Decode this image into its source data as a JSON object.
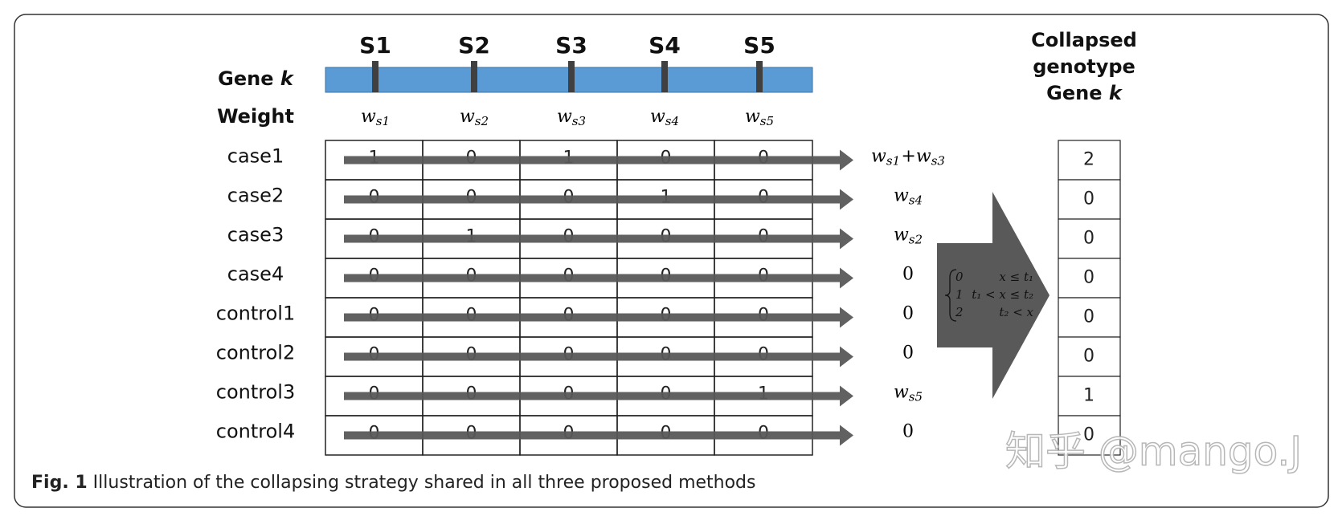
{
  "gene_label": {
    "text": "Gene",
    "var": "k"
  },
  "weight_label": "Weight",
  "sites": [
    "S1",
    "S2",
    "S3",
    "S4",
    "S5"
  ],
  "weights": [
    {
      "base": "w",
      "sub": "s1"
    },
    {
      "base": "w",
      "sub": "s2"
    },
    {
      "base": "w",
      "sub": "s3"
    },
    {
      "base": "w",
      "sub": "s4"
    },
    {
      "base": "w",
      "sub": "s5"
    }
  ],
  "rows": [
    {
      "label": "case1",
      "genotypes": [
        1,
        0,
        1,
        0,
        0
      ],
      "sum": [
        {
          "base": "w",
          "sub": "s1"
        },
        "+",
        {
          "base": "w",
          "sub": "s3"
        }
      ]
    },
    {
      "label": "case2",
      "genotypes": [
        0,
        0,
        0,
        1,
        0
      ],
      "sum": [
        {
          "base": "w",
          "sub": "s4"
        }
      ]
    },
    {
      "label": "case3",
      "genotypes": [
        0,
        1,
        0,
        0,
        0
      ],
      "sum": [
        {
          "base": "w",
          "sub": "s2"
        }
      ]
    },
    {
      "label": "case4",
      "genotypes": [
        0,
        0,
        0,
        0,
        0
      ],
      "sum": [
        0
      ]
    },
    {
      "label": "control1",
      "genotypes": [
        0,
        0,
        0,
        0,
        0
      ],
      "sum": [
        0
      ]
    },
    {
      "label": "control2",
      "genotypes": [
        0,
        0,
        0,
        0,
        0
      ],
      "sum": [
        0
      ]
    },
    {
      "label": "control3",
      "genotypes": [
        0,
        0,
        0,
        0,
        1
      ],
      "sum": [
        {
          "base": "w",
          "sub": "s5"
        }
      ]
    },
    {
      "label": "control4",
      "genotypes": [
        0,
        0,
        0,
        0,
        0
      ],
      "sum": [
        0
      ]
    }
  ],
  "piecewise": [
    [
      "0",
      "x ≤ t₁"
    ],
    [
      "1",
      "t₁ < x ≤ t₂"
    ],
    [
      "2",
      "t₂ < x"
    ]
  ],
  "collapsed_header": {
    "line1": "Collapsed",
    "line2": "genotype",
    "line3": {
      "text": "Gene",
      "var": "k"
    }
  },
  "collapsed": [
    2,
    0,
    0,
    0,
    0,
    0,
    1,
    0
  ],
  "caption": {
    "label": "Fig. 1",
    "text": "Illustration of the collapsing strategy shared in all three proposed methods"
  },
  "watermark": "知乎 @mango.J"
}
